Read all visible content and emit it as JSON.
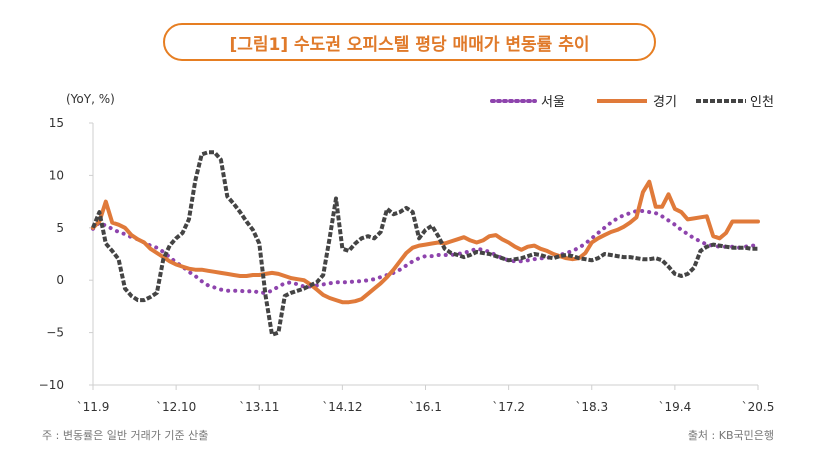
{
  "title": "[그림1] 수도권 오피스텔 평당 매매가 변동률 추이",
  "unit_label": "(YoY, %)",
  "footnote": "주 : 변동률은 일반 거래가 기준 산출",
  "source": "출처 : KB국민은행",
  "colors": {
    "seoul": "#8e44ad",
    "gyeonggi": "#e07a3a",
    "incheon": "#444444",
    "title": "#e07a2a"
  },
  "chart_data": {
    "type": "line",
    "ylim": [
      -10,
      15
    ],
    "yticks": [
      15,
      10,
      5,
      0,
      -5,
      -10
    ],
    "ytick_labels": [
      "15",
      "10",
      "5",
      "0",
      "−5",
      "−10"
    ],
    "x_tick_labels": [
      "`11.9",
      "`12.10",
      "`13.11",
      "`14.12",
      "`16.1",
      "`17.2",
      "`18.3",
      "`19.4",
      "`20.5"
    ],
    "x_tick_index": [
      0,
      13,
      26,
      39,
      52,
      65,
      78,
      91,
      104
    ],
    "legend_position": "top-right",
    "series": [
      {
        "name": "서울",
        "key": "seoul",
        "style": "dotted",
        "values": [
          4.9,
          5.5,
          5.2,
          4.9,
          4.6,
          4.4,
          4.1,
          3.9,
          3.6,
          3.3,
          3.1,
          2.7,
          2.2,
          1.7,
          1.3,
          0.8,
          0.4,
          -0.1,
          -0.5,
          -0.7,
          -0.9,
          -1.0,
          -1.0,
          -1.0,
          -1.1,
          -1.0,
          -1.2,
          -1.2,
          -1.0,
          -0.6,
          -0.3,
          -0.2,
          -0.4,
          -0.6,
          -0.6,
          -0.5,
          -0.4,
          -0.3,
          -0.2,
          -0.2,
          -0.2,
          -0.1,
          -0.1,
          0.0,
          0.1,
          0.3,
          0.5,
          0.7,
          1.0,
          1.4,
          1.8,
          2.1,
          2.3,
          2.3,
          2.4,
          2.4,
          2.4,
          2.5,
          2.6,
          2.8,
          3.0,
          2.9,
          2.7,
          2.4,
          2.1,
          1.9,
          1.8,
          1.8,
          1.9,
          2.0,
          2.1,
          2.1,
          2.3,
          2.4,
          2.6,
          2.8,
          3.1,
          3.5,
          4.0,
          4.5,
          5.0,
          5.5,
          5.9,
          6.2,
          6.4,
          6.6,
          6.6,
          6.5,
          6.4,
          6.1,
          5.7,
          5.3,
          4.8,
          4.4,
          4.0,
          3.7,
          3.4,
          3.3,
          3.2,
          3.2,
          3.2,
          3.1,
          3.2,
          3.3,
          3.3
        ]
      },
      {
        "name": "경기",
        "key": "gyeonggi",
        "style": "solid",
        "values": [
          5.0,
          5.6,
          7.5,
          5.5,
          5.3,
          5.0,
          4.3,
          3.9,
          3.6,
          3.0,
          2.6,
          2.2,
          1.8,
          1.5,
          1.3,
          1.1,
          1.0,
          1.0,
          0.9,
          0.8,
          0.7,
          0.6,
          0.5,
          0.4,
          0.4,
          0.5,
          0.5,
          0.6,
          0.7,
          0.6,
          0.4,
          0.2,
          0.1,
          0.0,
          -0.4,
          -0.9,
          -1.4,
          -1.7,
          -1.9,
          -2.1,
          -2.1,
          -2.0,
          -1.8,
          -1.3,
          -0.8,
          -0.3,
          0.3,
          1.0,
          1.8,
          2.6,
          3.1,
          3.3,
          3.4,
          3.5,
          3.6,
          3.5,
          3.7,
          3.9,
          4.1,
          3.8,
          3.6,
          3.8,
          4.2,
          4.3,
          3.9,
          3.6,
          3.2,
          2.9,
          3.2,
          3.3,
          3.0,
          2.8,
          2.5,
          2.3,
          2.1,
          2.0,
          2.1,
          2.6,
          3.6,
          4.0,
          4.3,
          4.6,
          4.8,
          5.1,
          5.5,
          6.0,
          8.4,
          9.4,
          7.0,
          7.0,
          8.2,
          6.8,
          6.5,
          5.8,
          5.9,
          6.0,
          6.1,
          4.2,
          4.0,
          4.5,
          5.6,
          5.6,
          5.6,
          5.6,
          5.6
        ]
      },
      {
        "name": "인천",
        "key": "incheon",
        "style": "dashed",
        "values": [
          5.0,
          6.5,
          3.5,
          2.8,
          2.0,
          -0.8,
          -1.5,
          -1.9,
          -1.9,
          -1.6,
          -1.2,
          2.0,
          3.3,
          4.0,
          4.5,
          5.8,
          9.5,
          12.0,
          12.2,
          12.2,
          11.5,
          8.0,
          7.3,
          6.5,
          5.6,
          4.8,
          3.5,
          -1.5,
          -5.2,
          -5.0,
          -1.5,
          -1.2,
          -1.0,
          -0.8,
          -0.5,
          -0.2,
          0.5,
          4.0,
          7.8,
          3.0,
          2.8,
          3.5,
          4.0,
          4.2,
          4.0,
          4.6,
          6.8,
          6.3,
          6.5,
          6.9,
          6.5,
          4.0,
          4.8,
          5.2,
          4.2,
          3.0,
          2.6,
          2.4,
          2.2,
          2.4,
          2.7,
          2.6,
          2.5,
          2.3,
          2.1,
          1.9,
          2.0,
          2.1,
          2.3,
          2.5,
          2.4,
          2.2,
          2.1,
          2.3,
          2.4,
          2.3,
          2.1,
          2.0,
          1.9,
          2.1,
          2.5,
          2.4,
          2.3,
          2.2,
          2.2,
          2.1,
          2.0,
          2.0,
          2.1,
          1.9,
          1.3,
          0.6,
          0.4,
          0.6,
          1.2,
          2.8,
          3.2,
          3.4,
          3.3,
          3.2,
          3.1,
          3.1,
          3.1,
          3.0,
          3.0
        ]
      }
    ]
  }
}
